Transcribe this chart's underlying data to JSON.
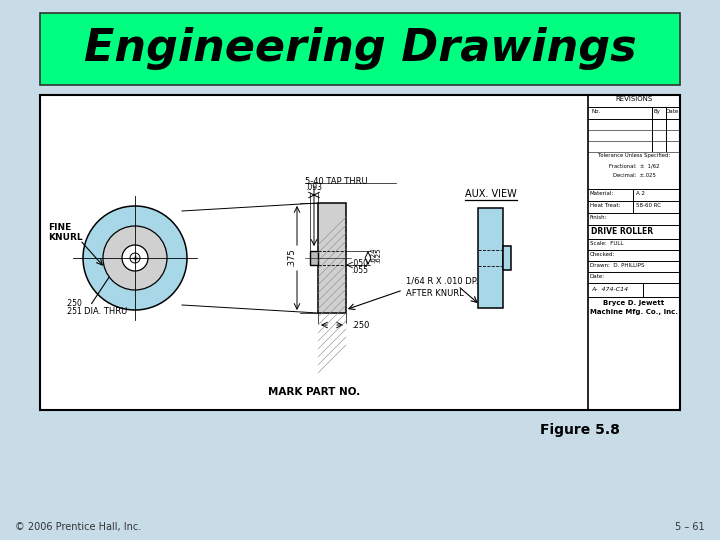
{
  "title": "Engineering Drawings",
  "title_bg_color": "#00FF80",
  "title_font_size": 32,
  "slide_bg_color": "#C8DCE8",
  "figure_caption": "Figure 5.8",
  "footer_left": "© 2006 Prentice Hall, Inc.",
  "footer_right": "5 – 61",
  "drawing_bg": "#FFFFFF",
  "drawing_border_color": "#000000"
}
